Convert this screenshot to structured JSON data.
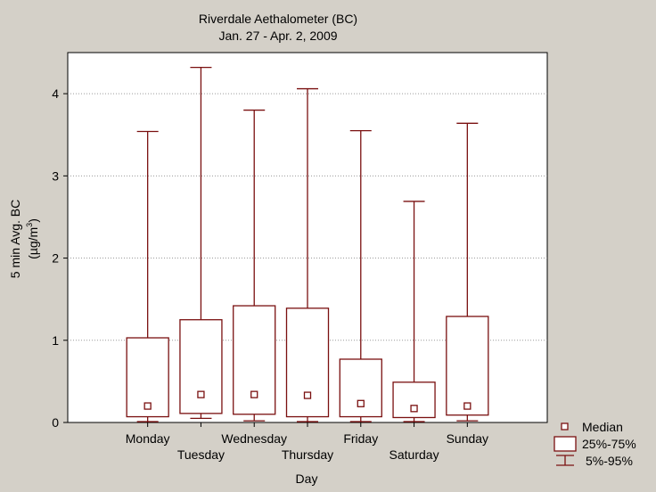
{
  "chart_data": {
    "type": "boxplot",
    "title": "Riverdale Aethalometer (BC)",
    "subtitle": "Jan. 27 - Apr. 2, 2009",
    "xlabel": "Day",
    "ylabel_line1": "5 min Avg. BC",
    "ylabel_line2_prefix": "(µg/m",
    "ylabel_line2_sup": "3",
    "ylabel_line2_suffix": ")",
    "ylim": [
      0,
      4.5
    ],
    "yticks": [
      0,
      1,
      2,
      3,
      4
    ],
    "grid": true,
    "categories": [
      "Monday",
      "Tuesday",
      "Wednesday",
      "Thursday",
      "Friday",
      "Saturday",
      "Sunday"
    ],
    "series": [
      {
        "name": "5%",
        "values": [
          0.01,
          0.05,
          0.02,
          0.01,
          0.01,
          0.01,
          0.02
        ]
      },
      {
        "name": "25%",
        "values": [
          0.07,
          0.11,
          0.1,
          0.07,
          0.07,
          0.06,
          0.09
        ]
      },
      {
        "name": "Median",
        "values": [
          0.2,
          0.34,
          0.34,
          0.33,
          0.23,
          0.17,
          0.2
        ]
      },
      {
        "name": "75%",
        "values": [
          1.03,
          1.25,
          1.42,
          1.39,
          0.77,
          0.49,
          1.29
        ]
      },
      {
        "name": "95%",
        "values": [
          3.54,
          4.32,
          3.8,
          4.06,
          3.55,
          2.69,
          3.64
        ]
      }
    ],
    "legend": [
      "Median",
      "25%-75%",
      "5%-95%"
    ],
    "legend_position": "bottom-right",
    "color": "#7a1010"
  }
}
